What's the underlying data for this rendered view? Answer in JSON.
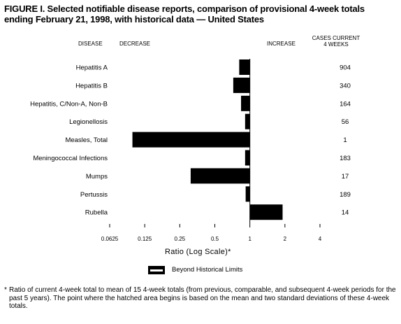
{
  "title": "FIGURE I. Selected notifiable disease reports, comparison of provisional 4-week totals ending February 21, 1998, with historical data — United States",
  "headers": {
    "disease": "DISEASE",
    "decrease": "DECREASE",
    "increase": "INCREASE",
    "cases_line1": "CASES CURRENT",
    "cases_line2": "4 WEEKS"
  },
  "legend": {
    "label": "Beyond Historical Limits"
  },
  "footnote": {
    "marker": "*",
    "text": "Ratio of current 4-week total to mean of 15 4-week totals (from previous, comparable, and subsequent 4-week periods for the past 5 years). The point where the hatched area begins is based on the mean and two standard deviations of these 4-week totals."
  },
  "chart_data": {
    "type": "bar",
    "orientation": "horizontal",
    "x_scale": "log2",
    "xlabel": "Ratio (Log Scale)*",
    "xlim": [
      0.0625,
      4
    ],
    "xticks": [
      0.0625,
      0.125,
      0.25,
      0.5,
      1,
      2,
      4
    ],
    "xtick_labels": [
      "0.0625",
      "0.125",
      "0.25",
      "0.5",
      "1",
      "2",
      "4"
    ],
    "baseline": 1,
    "categories": [
      "Hepatitis A",
      "Hepatitis B",
      "Hepatitis, C/Non-A, Non-B",
      "Legionellosis",
      "Measles, Total",
      "Meningococcal Infections",
      "Mumps",
      "Pertussis",
      "Rubella"
    ],
    "values": [
      0.81,
      0.72,
      0.84,
      0.91,
      0.098,
      0.91,
      0.31,
      0.92,
      1.91
    ],
    "cases_current_4_weeks": [
      904,
      340,
      164,
      56,
      1,
      183,
      17,
      189,
      14
    ],
    "bar_color": "#000000"
  }
}
